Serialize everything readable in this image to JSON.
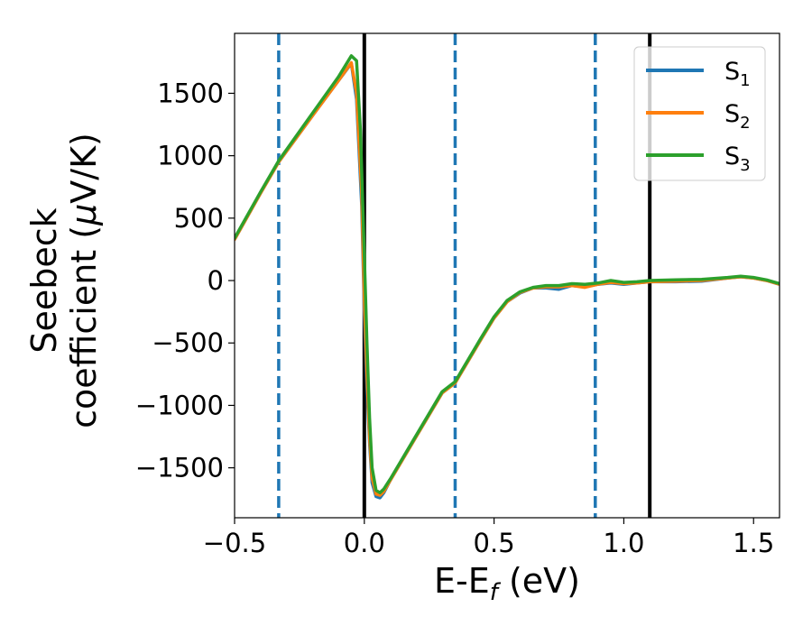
{
  "chart_data": {
    "type": "line",
    "xlabel_main": "E-E",
    "xlabel_sub": "f",
    "xlabel_unit": " (eV)",
    "ylabel_line1": "Seebeck",
    "ylabel_line2_pre": "coefficient  (",
    "ylabel_mu": "μ",
    "ylabel_line2_post": "V/K)",
    "xlim": [
      -0.5,
      1.6
    ],
    "ylim": [
      -1900,
      1980
    ],
    "xticks": [
      -0.5,
      0.0,
      0.5,
      1.0,
      1.5
    ],
    "xtick_labels": [
      "−0.5",
      "0.0",
      "0.5",
      "1.0",
      "1.5"
    ],
    "yticks": [
      -1500,
      -1000,
      -500,
      0,
      500,
      1000,
      1500
    ],
    "ytick_labels": [
      "−1500",
      "−1000",
      "−500",
      "0",
      "500",
      "1000",
      "1500"
    ],
    "vlines_solid": [
      0.0,
      1.1
    ],
    "vlines_dashed": [
      -0.33,
      0.35,
      0.89
    ],
    "legend_position": "top-right",
    "series": [
      {
        "name": "S",
        "sub": "1",
        "color": "#1f77b4",
        "x": [
          -0.5,
          -0.4,
          -0.33,
          -0.2,
          -0.1,
          -0.05,
          -0.03,
          -0.01,
          0.0,
          0.01,
          0.02,
          0.03,
          0.045,
          0.06,
          0.075,
          0.1,
          0.2,
          0.3,
          0.35,
          0.45,
          0.5,
          0.55,
          0.6,
          0.65,
          0.7,
          0.75,
          0.8,
          0.85,
          0.9,
          0.95,
          1.0,
          1.05,
          1.1,
          1.2,
          1.3,
          1.4,
          1.45,
          1.5,
          1.55,
          1.6
        ],
        "y": [
          330,
          700,
          950,
          1320,
          1600,
          1740,
          1450,
          600,
          -250,
          -850,
          -1300,
          -1620,
          -1730,
          -1740,
          -1700,
          -1600,
          -1250,
          -900,
          -820,
          -470,
          -300,
          -170,
          -100,
          -60,
          -60,
          -70,
          -40,
          -50,
          -30,
          -20,
          -30,
          -20,
          -10,
          -10,
          -5,
          20,
          30,
          20,
          0,
          -30
        ]
      },
      {
        "name": "S",
        "sub": "2",
        "color": "#ff7f0e",
        "x": [
          -0.5,
          -0.4,
          -0.33,
          -0.2,
          -0.1,
          -0.05,
          -0.03,
          -0.01,
          0.0,
          0.01,
          0.02,
          0.03,
          0.045,
          0.06,
          0.075,
          0.1,
          0.2,
          0.3,
          0.35,
          0.45,
          0.5,
          0.55,
          0.6,
          0.65,
          0.7,
          0.75,
          0.8,
          0.85,
          0.9,
          0.95,
          1.0,
          1.05,
          1.1,
          1.2,
          1.3,
          1.4,
          1.45,
          1.5,
          1.55,
          1.6
        ],
        "y": [
          330,
          700,
          950,
          1320,
          1600,
          1745,
          1500,
          700,
          -150,
          -750,
          -1250,
          -1580,
          -1710,
          -1720,
          -1690,
          -1600,
          -1250,
          -900,
          -820,
          -470,
          -300,
          -170,
          -95,
          -60,
          -50,
          -50,
          -40,
          -55,
          -30,
          -15,
          -25,
          -20,
          -10,
          -5,
          0,
          20,
          30,
          20,
          0,
          -30
        ]
      },
      {
        "name": "S",
        "sub": "3",
        "color": "#2ca02c",
        "x": [
          -0.5,
          -0.4,
          -0.33,
          -0.2,
          -0.1,
          -0.05,
          -0.03,
          -0.015,
          0.0,
          0.01,
          0.02,
          0.03,
          0.045,
          0.06,
          0.075,
          0.1,
          0.2,
          0.3,
          0.35,
          0.45,
          0.5,
          0.55,
          0.6,
          0.65,
          0.7,
          0.75,
          0.8,
          0.85,
          0.9,
          0.95,
          1.0,
          1.05,
          1.1,
          1.2,
          1.3,
          1.4,
          1.45,
          1.5,
          1.55,
          1.6
        ],
        "y": [
          340,
          710,
          960,
          1340,
          1630,
          1800,
          1760,
          1200,
          200,
          -500,
          -1100,
          -1500,
          -1680,
          -1700,
          -1670,
          -1590,
          -1240,
          -890,
          -810,
          -460,
          -290,
          -160,
          -90,
          -55,
          -40,
          -40,
          -25,
          -30,
          -20,
          0,
          -15,
          -10,
          0,
          5,
          10,
          25,
          35,
          25,
          5,
          -25
        ]
      }
    ]
  }
}
